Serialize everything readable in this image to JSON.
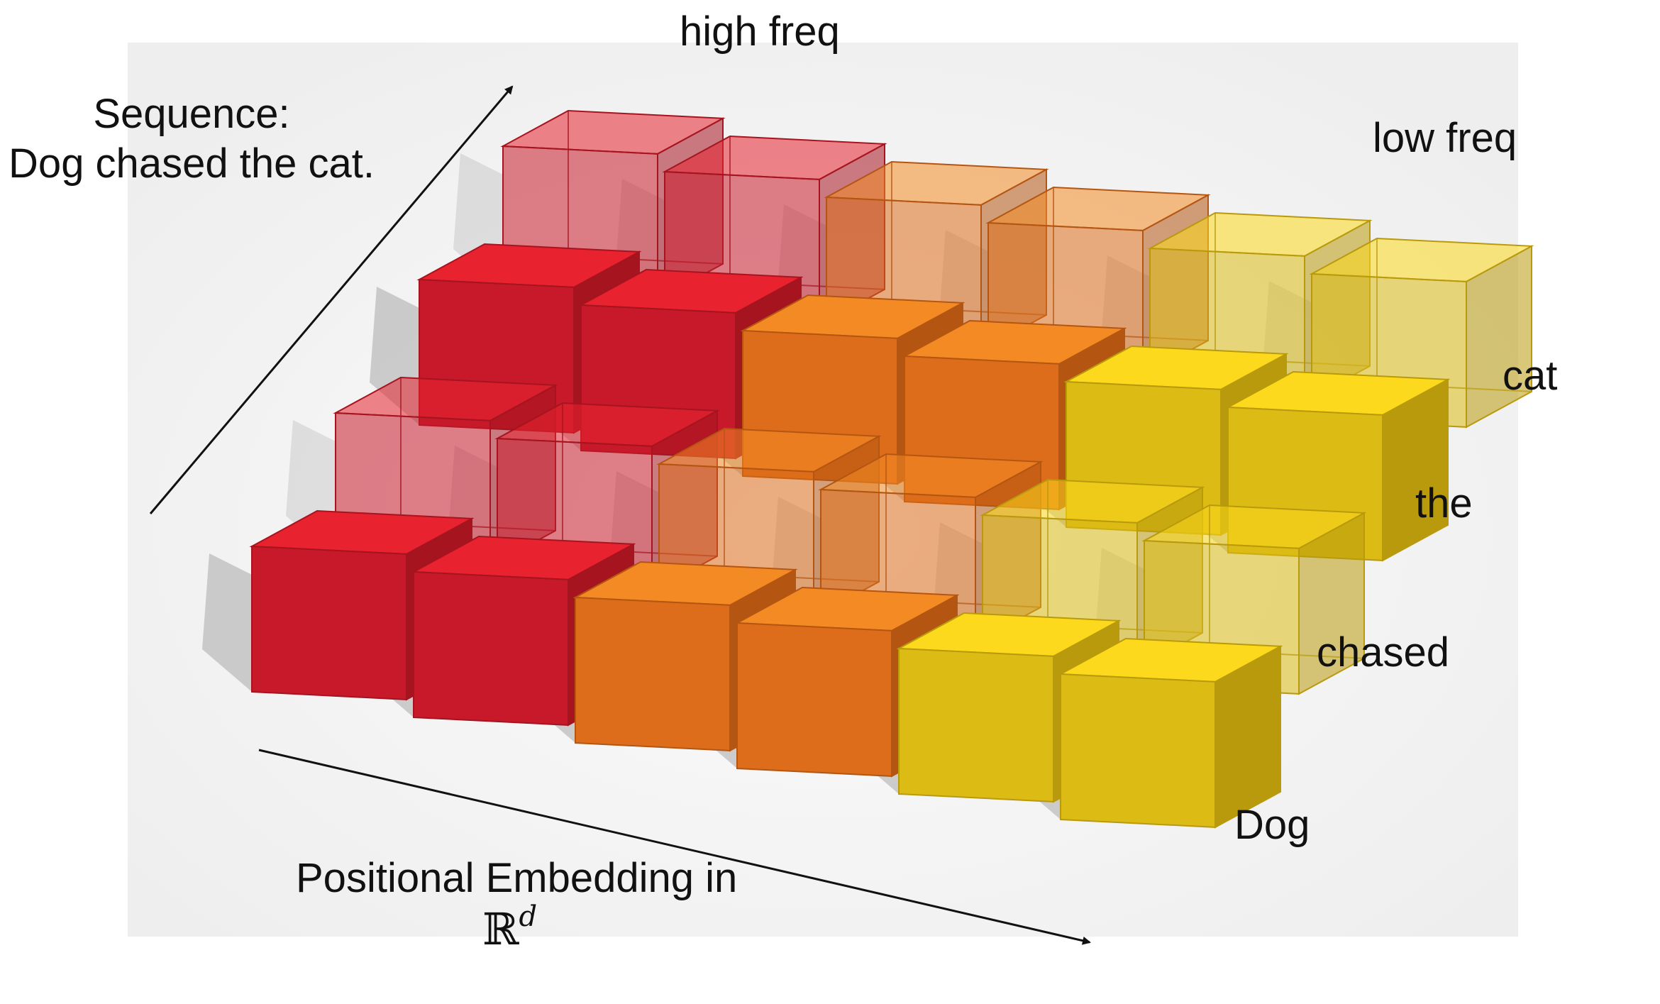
{
  "labels": {
    "high_freq": "high freq",
    "low_freq": "low freq",
    "sequence_title": "Sequence:",
    "sequence_text": "Dog chased the cat.",
    "embedding_title": "Positional Embedding in",
    "embedding_space": "ℝ",
    "embedding_exponent": "d"
  },
  "tokens": [
    "Dog",
    "chased",
    "the",
    "cat"
  ],
  "grid": {
    "rows": 4,
    "cols": 6,
    "column_colors": [
      "red",
      "red",
      "orange",
      "orange",
      "yellow",
      "yellow"
    ],
    "transparent_rows": [
      1,
      3
    ],
    "cell_style_note": "rows 'chased' and 'cat' rendered as translucent glass cubes"
  },
  "palette": {
    "red": {
      "front": "#c8192a",
      "top": "#e8222f",
      "side": "#a5141f"
    },
    "orange": {
      "front": "#dd6d1a",
      "top": "#f38a24",
      "side": "#b45612"
    },
    "yellow": {
      "front": "#dcbb14",
      "top": "#fcd91c",
      "side": "#b99a0c"
    },
    "background_panel": "#f2f2f2",
    "shadow": "#9a9a9a",
    "arrow": "#111111"
  }
}
